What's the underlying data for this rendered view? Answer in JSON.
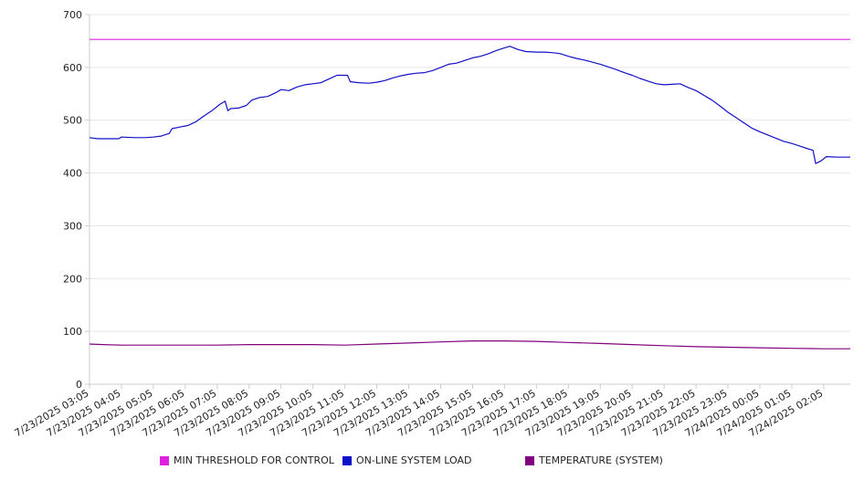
{
  "chart_data": {
    "type": "line",
    "ylim": [
      0,
      700
    ],
    "yticks": [
      0,
      100,
      200,
      300,
      400,
      500,
      600,
      700
    ],
    "xlabel": "",
    "ylabel": "",
    "grid": true,
    "legend_position": "bottom",
    "x_tick_labels": [
      "7/23/2025 03:05",
      "7/23/2025 04:05",
      "7/23/2025 05:05",
      "7/23/2025 06:05",
      "7/23/2025 07:05",
      "7/23/2025 08:05",
      "7/23/2025 09:05",
      "7/23/2025 10:05",
      "7/23/2025 11:05",
      "7/23/2025 12:05",
      "7/23/2025 13:05",
      "7/23/2025 14:05",
      "7/23/2025 15:05",
      "7/23/2025 16:05",
      "7/23/2025 17:05",
      "7/23/2025 18:05",
      "7/23/2025 19:05",
      "7/23/2025 20:05",
      "7/23/2025 21:05",
      "7/23/2025 22:05",
      "7/23/2025 23:05",
      "7/24/2025 00:05",
      "7/24/2025 01:05",
      "7/24/2025 02:05"
    ],
    "x_start": "7/23/2025 03:05",
    "x_end": "7/24/2025 02:55",
    "series": [
      {
        "name": "MIN THRESHOLD FOR CONTROL",
        "color": "#e020e0",
        "points": [
          [
            "7/23/2025 03:05",
            653
          ],
          [
            "7/24/2025 02:55",
            653
          ]
        ]
      },
      {
        "name": "ON-LINE SYSTEM LOAD",
        "color": "#1010c8",
        "points": [
          [
            "7/23/2025 03:05",
            467
          ],
          [
            "7/23/2025 03:20",
            465
          ],
          [
            "7/23/2025 03:40",
            465
          ],
          [
            "7/23/2025 04:00",
            465
          ],
          [
            "7/23/2025 04:05",
            468
          ],
          [
            "7/23/2025 04:30",
            467
          ],
          [
            "7/23/2025 04:50",
            467
          ],
          [
            "7/23/2025 05:05",
            468
          ],
          [
            "7/23/2025 05:20",
            470
          ],
          [
            "7/23/2025 05:35",
            475
          ],
          [
            "7/23/2025 05:40",
            484
          ],
          [
            "7/23/2025 05:55",
            487
          ],
          [
            "7/23/2025 06:10",
            490
          ],
          [
            "7/23/2025 06:25",
            497
          ],
          [
            "7/23/2025 06:40",
            508
          ],
          [
            "7/23/2025 06:55",
            518
          ],
          [
            "7/23/2025 07:10",
            530
          ],
          [
            "7/23/2025 07:20",
            536
          ],
          [
            "7/23/2025 07:25",
            518
          ],
          [
            "7/23/2025 07:30",
            522
          ],
          [
            "7/23/2025 07:45",
            523
          ],
          [
            "7/23/2025 08:00",
            528
          ],
          [
            "7/23/2025 08:10",
            538
          ],
          [
            "7/23/2025 08:25",
            543
          ],
          [
            "7/23/2025 08:40",
            545
          ],
          [
            "7/23/2025 08:55",
            552
          ],
          [
            "7/23/2025 09:05",
            558
          ],
          [
            "7/23/2025 09:20",
            556
          ],
          [
            "7/23/2025 09:35",
            563
          ],
          [
            "7/23/2025 09:50",
            567
          ],
          [
            "7/23/2025 10:05",
            569
          ],
          [
            "7/23/2025 10:20",
            571
          ],
          [
            "7/23/2025 10:35",
            578
          ],
          [
            "7/23/2025 10:50",
            585
          ],
          [
            "7/23/2025 11:10",
            585
          ],
          [
            "7/23/2025 11:15",
            573
          ],
          [
            "7/23/2025 11:30",
            571
          ],
          [
            "7/23/2025 11:50",
            570
          ],
          [
            "7/23/2025 12:05",
            572
          ],
          [
            "7/23/2025 12:20",
            575
          ],
          [
            "7/23/2025 12:35",
            580
          ],
          [
            "7/23/2025 12:50",
            584
          ],
          [
            "7/23/2025 13:05",
            587
          ],
          [
            "7/23/2025 13:20",
            589
          ],
          [
            "7/23/2025 13:35",
            590
          ],
          [
            "7/23/2025 13:50",
            594
          ],
          [
            "7/23/2025 14:05",
            600
          ],
          [
            "7/23/2025 14:20",
            606
          ],
          [
            "7/23/2025 14:35",
            608
          ],
          [
            "7/23/2025 14:50",
            613
          ],
          [
            "7/23/2025 15:05",
            618
          ],
          [
            "7/23/2025 15:20",
            621
          ],
          [
            "7/23/2025 15:35",
            626
          ],
          [
            "7/23/2025 15:50",
            632
          ],
          [
            "7/23/2025 16:05",
            637
          ],
          [
            "7/23/2025 16:15",
            640
          ],
          [
            "7/23/2025 16:30",
            634
          ],
          [
            "7/23/2025 16:45",
            630
          ],
          [
            "7/23/2025 17:05",
            629
          ],
          [
            "7/23/2025 17:20",
            629
          ],
          [
            "7/23/2025 17:35",
            628
          ],
          [
            "7/23/2025 17:50",
            626
          ],
          [
            "7/23/2025 18:05",
            621
          ],
          [
            "7/23/2025 18:20",
            617
          ],
          [
            "7/23/2025 18:35",
            614
          ],
          [
            "7/23/2025 18:50",
            610
          ],
          [
            "7/23/2025 19:05",
            606
          ],
          [
            "7/23/2025 19:20",
            601
          ],
          [
            "7/23/2025 19:35",
            596
          ],
          [
            "7/23/2025 19:50",
            590
          ],
          [
            "7/23/2025 20:05",
            585
          ],
          [
            "7/23/2025 20:20",
            579
          ],
          [
            "7/23/2025 20:35",
            574
          ],
          [
            "7/23/2025 20:50",
            569
          ],
          [
            "7/23/2025 21:05",
            567
          ],
          [
            "7/23/2025 21:20",
            568
          ],
          [
            "7/23/2025 21:35",
            569
          ],
          [
            "7/23/2025 21:50",
            562
          ],
          [
            "7/23/2025 22:05",
            556
          ],
          [
            "7/23/2025 22:20",
            547
          ],
          [
            "7/23/2025 22:35",
            538
          ],
          [
            "7/23/2025 22:50",
            527
          ],
          [
            "7/23/2025 23:05",
            515
          ],
          [
            "7/23/2025 23:20",
            505
          ],
          [
            "7/23/2025 23:35",
            495
          ],
          [
            "7/23/2025 23:50",
            485
          ],
          [
            "7/24/2025 00:05",
            478
          ],
          [
            "7/24/2025 00:20",
            472
          ],
          [
            "7/24/2025 00:35",
            466
          ],
          [
            "7/24/2025 00:50",
            460
          ],
          [
            "7/24/2025 01:05",
            456
          ],
          [
            "7/24/2025 01:20",
            451
          ],
          [
            "7/24/2025 01:35",
            446
          ],
          [
            "7/24/2025 01:45",
            443
          ],
          [
            "7/24/2025 01:50",
            418
          ],
          [
            "7/24/2025 02:00",
            423
          ],
          [
            "7/24/2025 02:10",
            431
          ],
          [
            "7/24/2025 02:30",
            430
          ],
          [
            "7/24/2025 02:55",
            430
          ]
        ]
      },
      {
        "name": "TEMPERATURE (SYSTEM)",
        "color": "#800080",
        "points": [
          [
            "7/23/2025 03:05",
            76
          ],
          [
            "7/23/2025 03:30",
            75
          ],
          [
            "7/23/2025 04:05",
            74
          ],
          [
            "7/23/2025 05:05",
            74
          ],
          [
            "7/23/2025 06:05",
            74
          ],
          [
            "7/23/2025 07:05",
            74
          ],
          [
            "7/23/2025 08:05",
            75
          ],
          [
            "7/23/2025 09:05",
            75
          ],
          [
            "7/23/2025 10:05",
            75
          ],
          [
            "7/23/2025 11:05",
            74
          ],
          [
            "7/23/2025 12:05",
            76
          ],
          [
            "7/23/2025 13:05",
            78
          ],
          [
            "7/23/2025 14:05",
            80
          ],
          [
            "7/23/2025 15:05",
            82
          ],
          [
            "7/23/2025 16:05",
            82
          ],
          [
            "7/23/2025 17:05",
            81
          ],
          [
            "7/23/2025 18:05",
            79
          ],
          [
            "7/23/2025 19:05",
            77
          ],
          [
            "7/23/2025 20:05",
            75
          ],
          [
            "7/23/2025 21:05",
            73
          ],
          [
            "7/23/2025 22:05",
            71
          ],
          [
            "7/23/2025 23:05",
            70
          ],
          [
            "7/24/2025 00:05",
            69
          ],
          [
            "7/24/2025 01:05",
            68
          ],
          [
            "7/24/2025 02:05",
            67
          ],
          [
            "7/24/2025 02:55",
            67
          ]
        ]
      }
    ]
  }
}
